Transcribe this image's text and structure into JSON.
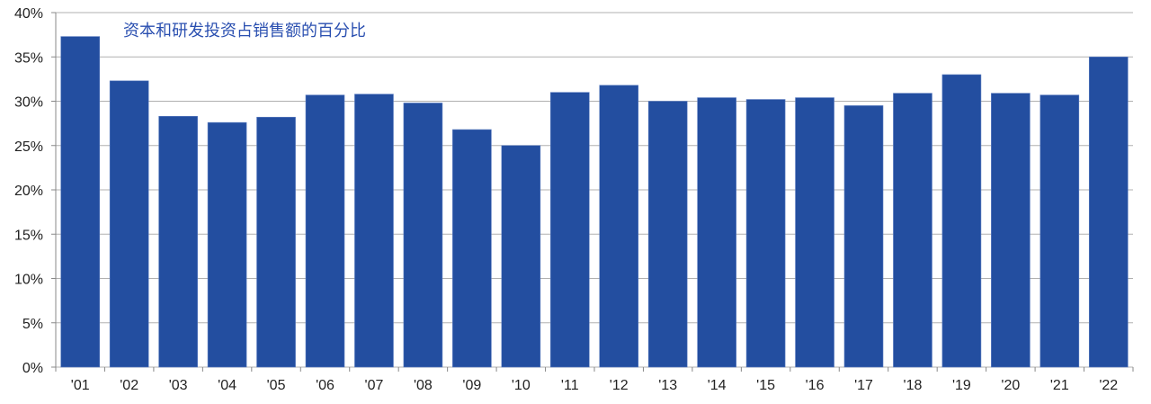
{
  "chart_data": {
    "type": "bar",
    "title": "资本和研发投资占销售额的百分比",
    "xlabel": "",
    "ylabel": "",
    "categories": [
      "'01",
      "'02",
      "'03",
      "'04",
      "'05",
      "'06",
      "'07",
      "'08",
      "'09",
      "'10",
      "'11",
      "'12",
      "'13",
      "'14",
      "'15",
      "'16",
      "'17",
      "'18",
      "'19",
      "'20",
      "'21",
      "'22"
    ],
    "values": [
      37.3,
      32.3,
      28.3,
      27.6,
      28.2,
      30.7,
      30.8,
      29.8,
      26.8,
      25.0,
      31.0,
      31.8,
      30.0,
      30.4,
      30.2,
      30.4,
      29.5,
      30.9,
      33.0,
      30.9,
      30.7,
      35.0
    ],
    "ylim": [
      0,
      40
    ],
    "yticks": [
      "0%",
      "5%",
      "10%",
      "15%",
      "20%",
      "25%",
      "30%",
      "35%",
      "40%"
    ],
    "grid": true,
    "legend": "none",
    "colors": {
      "bar": "#234ea0",
      "title": "#2a4fb0",
      "grid": "#b0b0b0"
    }
  }
}
